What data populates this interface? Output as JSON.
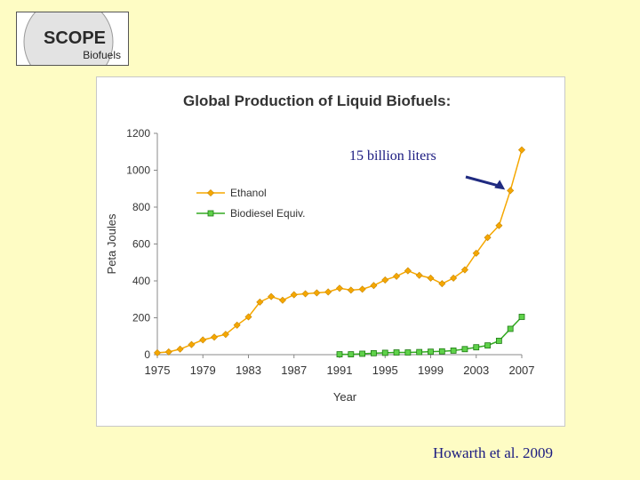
{
  "logo": {
    "word": "SCOPE",
    "subtitle": "Biofuels"
  },
  "citation": "Howarth et al. 2009",
  "chart_data": {
    "type": "line",
    "title": "Global Production of Liquid Biofuels:",
    "xlabel": "Year",
    "ylabel": "Peta Joules",
    "xlim": [
      1975,
      2007
    ],
    "ylim": [
      0,
      1200
    ],
    "x_ticks": [
      "1975",
      "1979",
      "1983",
      "1987",
      "1991",
      "1995",
      "1999",
      "2003",
      "2007"
    ],
    "y_ticks": [
      "0",
      "200",
      "400",
      "600",
      "800",
      "1000",
      "1200"
    ],
    "grid": false,
    "legend_position": "top-left",
    "series": [
      {
        "name": "Ethanol",
        "color": "#f5a700",
        "marker": "diamond",
        "x": [
          1975,
          1976,
          1977,
          1978,
          1979,
          1980,
          1981,
          1982,
          1983,
          1984,
          1985,
          1986,
          1987,
          1988,
          1989,
          1990,
          1991,
          1992,
          1993,
          1994,
          1995,
          1996,
          1997,
          1998,
          1999,
          2000,
          2001,
          2002,
          2003,
          2004,
          2005,
          2006,
          2007
        ],
        "values": [
          10,
          15,
          30,
          55,
          80,
          95,
          110,
          160,
          205,
          285,
          315,
          295,
          325,
          330,
          335,
          340,
          360,
          350,
          355,
          375,
          405,
          425,
          455,
          430,
          415,
          385,
          415,
          460,
          550,
          635,
          700,
          890,
          1110
        ]
      },
      {
        "name": "Biodiesel Equiv.",
        "color": "#33aa22",
        "marker": "square",
        "x": [
          1991,
          1992,
          1993,
          1994,
          1995,
          1996,
          1997,
          1998,
          1999,
          2000,
          2001,
          2002,
          2003,
          2004,
          2005,
          2006,
          2007
        ],
        "values": [
          2,
          2,
          5,
          8,
          10,
          12,
          12,
          14,
          16,
          18,
          22,
          30,
          40,
          50,
          75,
          140,
          205
        ]
      }
    ],
    "annotations": [
      {
        "text": "15 billion liters",
        "points_to_x": 2006,
        "points_to_y": 890
      }
    ]
  }
}
